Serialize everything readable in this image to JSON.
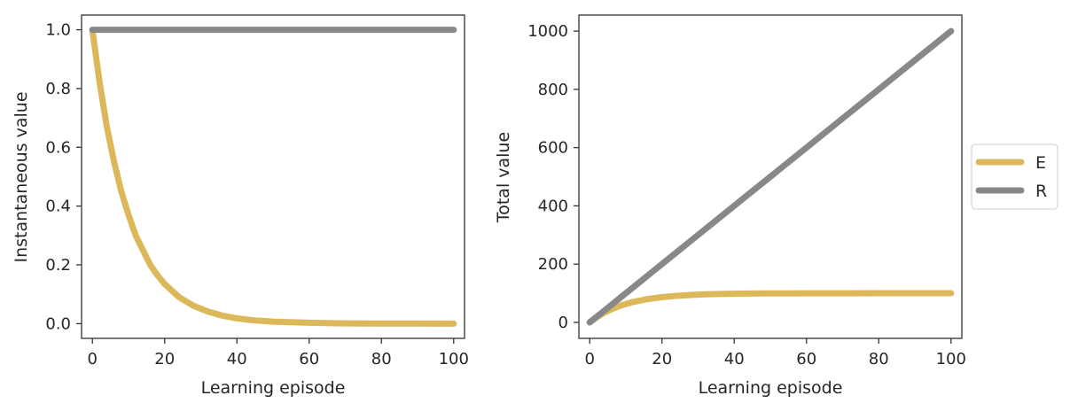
{
  "chart_data": [
    {
      "type": "line",
      "xlabel": "Learning episode",
      "ylabel": "Instantaneous value",
      "xlim": [
        -3,
        103
      ],
      "ylim": [
        -0.05,
        1.05
      ],
      "xticks": [
        "0",
        "20",
        "40",
        "60",
        "80",
        "100"
      ],
      "yticks": [
        "0.0",
        "0.2",
        "0.4",
        "0.6",
        "0.8",
        "1.0"
      ],
      "x": [
        0,
        2,
        4,
        6,
        8,
        10,
        12,
        14,
        16,
        18,
        20,
        24,
        28,
        32,
        36,
        40,
        45,
        50,
        60,
        70,
        80,
        90,
        100
      ],
      "series": [
        {
          "name": "E",
          "color": "#DDB85A",
          "values": [
            1.0,
            0.82,
            0.67,
            0.55,
            0.45,
            0.37,
            0.3,
            0.25,
            0.2,
            0.165,
            0.135,
            0.09,
            0.061,
            0.041,
            0.027,
            0.018,
            0.011,
            0.007,
            0.003,
            0.001,
            0.0005,
            0.0002,
            0.0
          ]
        },
        {
          "name": "R",
          "color": "#888888",
          "values": [
            1.0,
            1.0,
            1.0,
            1.0,
            1.0,
            1.0,
            1.0,
            1.0,
            1.0,
            1.0,
            1.0,
            1.0,
            1.0,
            1.0,
            1.0,
            1.0,
            1.0,
            1.0,
            1.0,
            1.0,
            1.0,
            1.0,
            1.0
          ]
        }
      ],
      "grid": false
    },
    {
      "type": "line",
      "xlabel": "Learning episode",
      "ylabel": "Total value",
      "xlim": [
        -3,
        103
      ],
      "ylim": [
        -55,
        1055
      ],
      "xticks": [
        "0",
        "20",
        "40",
        "60",
        "80",
        "100"
      ],
      "yticks": [
        "0",
        "200",
        "400",
        "600",
        "800",
        "1000"
      ],
      "x": [
        0,
        2,
        4,
        6,
        8,
        10,
        12,
        14,
        16,
        18,
        20,
        24,
        28,
        32,
        36,
        40,
        45,
        50,
        60,
        70,
        80,
        90,
        100
      ],
      "series": [
        {
          "name": "E",
          "color": "#DDB85A",
          "values": [
            0,
            18,
            33,
            45,
            55,
            63,
            70,
            75,
            80,
            83.5,
            86.5,
            91,
            94,
            96,
            97.3,
            98.2,
            98.9,
            99.3,
            99.7,
            99.9,
            100,
            100,
            100
          ]
        },
        {
          "name": "R",
          "color": "#888888",
          "values": [
            0,
            20,
            40,
            60,
            80,
            100,
            120,
            140,
            160,
            180,
            200,
            240,
            280,
            320,
            360,
            400,
            450,
            500,
            600,
            700,
            800,
            900,
            1000
          ]
        }
      ],
      "grid": false,
      "legend": {
        "placement": "outside-right",
        "entries": [
          "E",
          "R"
        ]
      }
    }
  ]
}
